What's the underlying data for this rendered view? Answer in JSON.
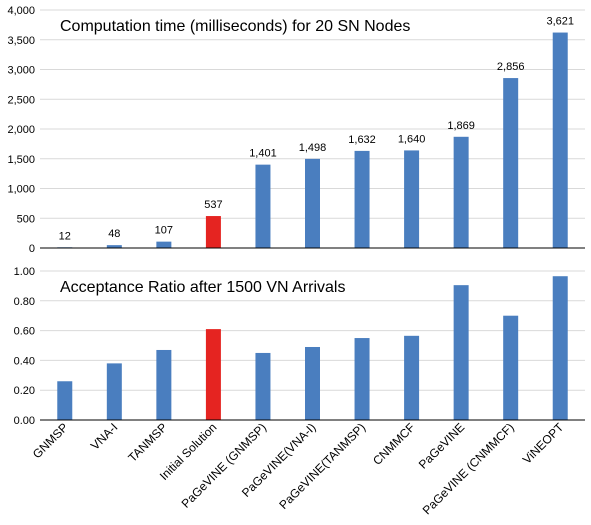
{
  "colors": {
    "bar": "#4a7ebf",
    "highlight": "#e52421",
    "grid": "#d9d9d9",
    "axis": "#000000"
  },
  "categories": [
    "GNMSP",
    "VNA-I",
    "TANMSP",
    "Initial Solution",
    "PaGeVINE (GNMSP)",
    "PaGeVINE(VNA-I)",
    "PaGeVINE(TANMSP)",
    "CNMMCF",
    "PaGeVINE",
    "PaGeVINE (CNMMCF)",
    "ViNEOPT"
  ],
  "highlight_index": 3,
  "chart_data": [
    {
      "type": "bar",
      "title": "Computation time (milliseconds) for 20 SN Nodes",
      "xlabel": "",
      "ylabel": "",
      "ylim": [
        0,
        4000
      ],
      "yticks": [
        "0",
        "500",
        "1,000",
        "1,500",
        "2,000",
        "2,500",
        "3,000",
        "3,500",
        "4,000"
      ],
      "grid": true,
      "values": [
        12,
        48,
        107,
        537,
        1401,
        1498,
        1632,
        1640,
        1869,
        2856,
        3621
      ],
      "data_labels": [
        "12",
        "48",
        "107",
        "537",
        "1,401",
        "1,498",
        "1,632",
        "1,640",
        "1,869",
        "2,856",
        "3,621"
      ]
    },
    {
      "type": "bar",
      "title": "Acceptance Ratio after 1500 VN Arrivals",
      "xlabel": "",
      "ylabel": "",
      "ylim": [
        0,
        1
      ],
      "yticks": [
        "0.00",
        "0.20",
        "0.40",
        "0.60",
        "0.80",
        "1.00"
      ],
      "grid": true,
      "values": [
        0.26,
        0.38,
        0.47,
        0.61,
        0.45,
        0.49,
        0.55,
        0.565,
        0.905,
        0.7,
        0.965
      ]
    }
  ]
}
